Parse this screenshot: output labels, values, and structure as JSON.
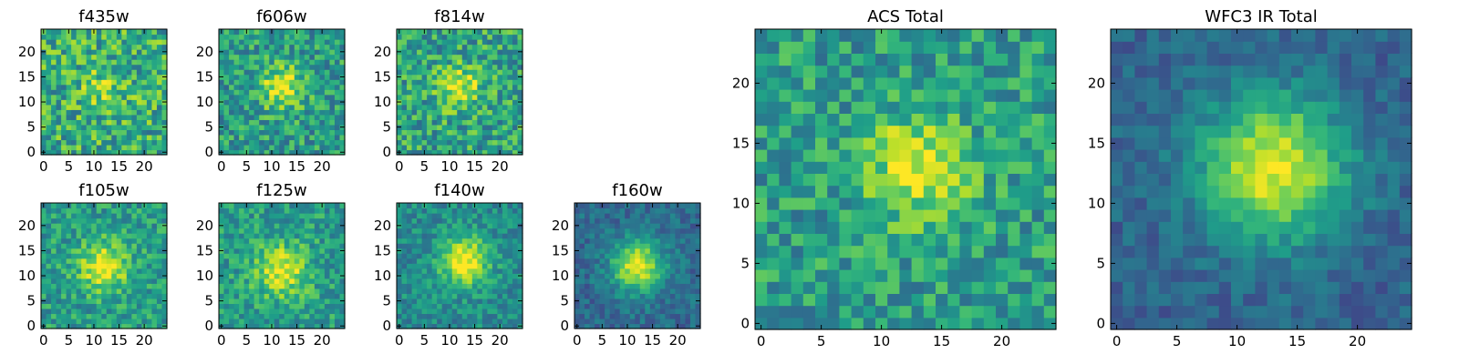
{
  "chart_data": [
    {
      "type": "heatmap",
      "title": "f435w",
      "pixels": 25,
      "x_ticks": [
        "0",
        "5",
        "10",
        "15",
        "20"
      ],
      "y_ticks": [
        "0",
        "5",
        "10",
        "15",
        "20"
      ],
      "xlim": [
        -0.5,
        24.5
      ],
      "ylim": [
        -0.5,
        24.5
      ],
      "blob_center": [
        12,
        13
      ],
      "blob_strength": 0.18,
      "blob_sigma": 3.2,
      "base_level": 0.62,
      "noise": 0.26,
      "seed": 11
    },
    {
      "type": "heatmap",
      "title": "f606w",
      "pixels": 25,
      "x_ticks": [
        "0",
        "5",
        "10",
        "15",
        "20"
      ],
      "y_ticks": [
        "0",
        "5",
        "10",
        "15",
        "20"
      ],
      "xlim": [
        -0.5,
        24.5
      ],
      "ylim": [
        -0.5,
        24.5
      ],
      "blob_center": [
        12,
        13
      ],
      "blob_strength": 0.42,
      "blob_sigma": 3.0,
      "base_level": 0.55,
      "noise": 0.22,
      "seed": 23
    },
    {
      "type": "heatmap",
      "title": "f814w",
      "pixels": 25,
      "x_ticks": [
        "0",
        "5",
        "10",
        "15",
        "20"
      ],
      "y_ticks": [
        "0",
        "5",
        "10",
        "15",
        "20"
      ],
      "xlim": [
        -0.5,
        24.5
      ],
      "ylim": [
        -0.5,
        24.5
      ],
      "blob_center": [
        12,
        13
      ],
      "blob_strength": 0.35,
      "blob_sigma": 3.0,
      "base_level": 0.58,
      "noise": 0.24,
      "seed": 37
    },
    {
      "type": "heatmap",
      "title": "f105w",
      "pixels": 25,
      "x_ticks": [
        "0",
        "5",
        "10",
        "15",
        "20"
      ],
      "y_ticks": [
        "0",
        "5",
        "10",
        "15",
        "20"
      ],
      "xlim": [
        -0.5,
        24.5
      ],
      "ylim": [
        -0.5,
        24.5
      ],
      "blob_center": [
        12,
        12
      ],
      "blob_strength": 0.45,
      "blob_sigma": 3.4,
      "base_level": 0.55,
      "noise": 0.18,
      "seed": 41
    },
    {
      "type": "heatmap",
      "title": "f125w",
      "pixels": 25,
      "x_ticks": [
        "0",
        "5",
        "10",
        "15",
        "20"
      ],
      "y_ticks": [
        "0",
        "5",
        "10",
        "15",
        "20"
      ],
      "xlim": [
        -0.5,
        24.5
      ],
      "ylim": [
        -0.5,
        24.5
      ],
      "blob_center": [
        12,
        11
      ],
      "blob_strength": 0.42,
      "blob_sigma": 3.6,
      "base_level": 0.55,
      "noise": 0.18,
      "seed": 53
    },
    {
      "type": "heatmap",
      "title": "f140w",
      "pixels": 25,
      "x_ticks": [
        "0",
        "5",
        "10",
        "15",
        "20"
      ],
      "y_ticks": [
        "0",
        "5",
        "10",
        "15",
        "20"
      ],
      "xlim": [
        -0.5,
        24.5
      ],
      "ylim": [
        -0.5,
        24.5
      ],
      "blob_center": [
        13,
        13
      ],
      "blob_strength": 0.55,
      "blob_sigma": 3.4,
      "base_level": 0.48,
      "noise": 0.15,
      "seed": 67
    },
    {
      "type": "heatmap",
      "title": "f160w",
      "pixels": 25,
      "x_ticks": [
        "0",
        "5",
        "10",
        "15",
        "20"
      ],
      "y_ticks": [
        "0",
        "5",
        "10",
        "15",
        "20"
      ],
      "xlim": [
        -0.5,
        24.5
      ],
      "ylim": [
        -0.5,
        24.5
      ],
      "blob_center": [
        12,
        12
      ],
      "blob_strength": 0.62,
      "blob_sigma": 3.6,
      "base_level": 0.35,
      "noise": 0.12,
      "seed": 79
    },
    {
      "type": "heatmap",
      "title": "ACS Total",
      "pixels": 25,
      "x_ticks": [
        "0",
        "5",
        "10",
        "15",
        "20"
      ],
      "y_ticks": [
        "0",
        "5",
        "10",
        "15",
        "20"
      ],
      "xlim": [
        -0.5,
        24.5
      ],
      "ylim": [
        -0.5,
        24.5
      ],
      "blob_center": [
        13,
        13
      ],
      "blob_strength": 0.42,
      "blob_sigma": 3.0,
      "base_level": 0.55,
      "noise": 0.2,
      "seed": 97
    },
    {
      "type": "heatmap",
      "title": "WFC3 IR Total",
      "pixels": 25,
      "x_ticks": [
        "0",
        "5",
        "10",
        "15",
        "20"
      ],
      "y_ticks": [
        "0",
        "5",
        "10",
        "15",
        "20"
      ],
      "xlim": [
        -0.5,
        24.5
      ],
      "ylim": [
        -0.5,
        24.5
      ],
      "blob_center": [
        13,
        13
      ],
      "blob_strength": 0.65,
      "blob_sigma": 4.2,
      "base_level": 0.32,
      "noise": 0.1,
      "seed": 131
    }
  ],
  "colormap": [
    "#440154",
    "#482878",
    "#3e4989",
    "#31688e",
    "#26828e",
    "#1f9e89",
    "#35b779",
    "#6ece58",
    "#b5de2b",
    "#fde725"
  ]
}
